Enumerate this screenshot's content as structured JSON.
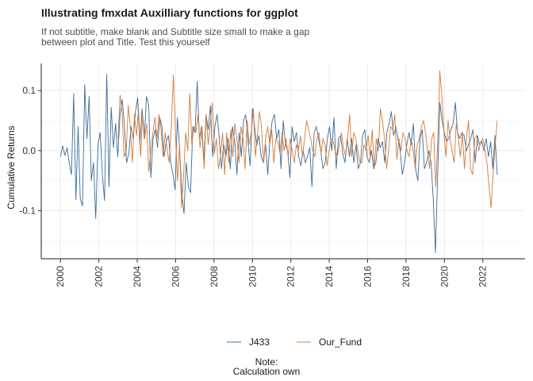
{
  "chart_data": {
    "type": "line",
    "title": "Illustrating fmxdat Auxilliary functions for ggplot",
    "subtitle_lines": [
      "If not subtitle, make blank and Subtitle size small to make a gap",
      "between plot and Title. Test this yourself"
    ],
    "ylabel": "Cumulative Returns",
    "xlabel": "",
    "x_ticks": [
      "2000",
      "2002",
      "2004",
      "2006",
      "2008",
      "2010",
      "2012",
      "2014",
      "2016",
      "2018",
      "2020",
      "2022"
    ],
    "y_ticks": [
      "0.1",
      "0.0",
      "-0.1"
    ],
    "y_tick_values": [
      0.1,
      0.0,
      -0.1
    ],
    "ylim": [
      -0.18,
      0.145
    ],
    "xlim": [
      1999.0,
      2024.2
    ],
    "grid": true,
    "legend_position": "bottom",
    "caption_lines": [
      "Note:",
      "Calculation own"
    ],
    "series": [
      {
        "name": "J433",
        "color": "#3b6b9a",
        "x_start": 2000.0,
        "x_end": 2022.75,
        "values": [
          -0.01,
          0.008,
          -0.008,
          0.005,
          -0.02,
          -0.04,
          0.095,
          -0.082,
          0.04,
          -0.08,
          -0.092,
          0.11,
          0.02,
          0.09,
          -0.05,
          -0.02,
          -0.113,
          0.01,
          0.03,
          -0.04,
          -0.083,
          0.127,
          -0.06,
          0.072,
          0.005,
          0.045,
          -0.01,
          0.06,
          0.085,
          0.04,
          -0.02,
          -0.005,
          0.04,
          0.02,
          0.065,
          0.088,
          0.01,
          0.07,
          0.02,
          0.09,
          0.075,
          -0.045,
          0.02,
          0.035,
          0.005,
          0.055,
          0.04,
          -0.01,
          0.015,
          0.025,
          -0.02,
          -0.04,
          -0.065,
          0.055,
          0.005,
          -0.07,
          -0.105,
          -0.02,
          -0.06,
          -0.07,
          0.04,
          0.03,
          0.115,
          0.02,
          0.04,
          -0.02,
          0.06,
          0.035,
          0.075,
          -0.01,
          0.04,
          0.06,
          0.02,
          -0.03,
          0.01,
          -0.01,
          0.02,
          -0.03,
          0.04,
          0.015,
          -0.04,
          0.03,
          -0.01,
          0.05,
          0.06,
          0.015,
          -0.025,
          0.07,
          0.04,
          0.008,
          0.025,
          -0.01,
          -0.02,
          0.01,
          -0.04,
          0.02,
          0.05,
          0.06,
          0.02,
          0.035,
          -0.03,
          0.05,
          0.01,
          0.0,
          -0.045,
          0.04,
          0.015,
          0.03,
          -0.01,
          -0.025,
          0.0,
          -0.02,
          -0.01,
          0.005,
          -0.06,
          0.03,
          0.04,
          0.02,
          0.0,
          -0.03,
          -0.02,
          0.02,
          0.04,
          0.0,
          0.055,
          -0.03,
          0.02,
          0.025,
          -0.005,
          -0.02,
          0.02,
          -0.01,
          0.02,
          -0.02,
          0.01,
          -0.03,
          -0.02,
          0.025,
          0.035,
          -0.01,
          -0.02,
          0.0,
          -0.03,
          -0.02,
          0.02,
          0.005,
          0.015,
          -0.02,
          0.03,
          0.045,
          0.065,
          0.025,
          0.04,
          0.02,
          0.0,
          -0.04,
          -0.02,
          0.01,
          0.03,
          0.01,
          0.045,
          -0.03,
          -0.05,
          0.02,
          0.035,
          -0.03,
          -0.02,
          0.0,
          -0.02,
          -0.08,
          -0.17,
          -0.04,
          0.08,
          0.05,
          0.03,
          0.015,
          0.02,
          0.035,
          0.045,
          0.08,
          0.03,
          0.02,
          0.03,
          0.025,
          0.0,
          0.01,
          0.02,
          0.035,
          -0.02,
          0.025,
          0.01,
          0.015,
          0.0,
          0.02,
          -0.01,
          0.015,
          -0.03,
          0.025,
          -0.04
        ]
      },
      {
        "name": "Our_Fund",
        "color": "#d47a36",
        "x_start": 2003.0,
        "x_end": 2022.75,
        "values": [
          0.02,
          0.092,
          0.06,
          -0.01,
          0.0,
          0.075,
          0.04,
          -0.02,
          0.06,
          0.025,
          0.07,
          -0.01,
          0.06,
          0.02,
          0.045,
          -0.035,
          0.0,
          0.03,
          0.055,
          0.02,
          0.06,
          0.035,
          -0.01,
          0.03,
          0.0,
          -0.02,
          0.04,
          0.126,
          0.03,
          -0.05,
          0.01,
          -0.095,
          -0.04,
          0.03,
          0.0,
          0.095,
          0.01,
          0.04,
          0.03,
          0.06,
          0.005,
          0.04,
          -0.03,
          0.06,
          0.01,
          0.045,
          0.08,
          -0.005,
          0.02,
          -0.03,
          -0.01,
          0.03,
          -0.04,
          0.03,
          -0.02,
          0.035,
          -0.01,
          0.045,
          0.02,
          -0.02,
          0.04,
          0.02,
          -0.03,
          0.05,
          0.01,
          0.03,
          0.07,
          -0.01,
          0.025,
          0.065,
          0.04,
          -0.02,
          0.02,
          0.04,
          0.01,
          0.035,
          -0.02,
          0.02,
          0.015,
          -0.005,
          0.03,
          0.0,
          0.02,
          -0.01,
          0.02,
          0.0,
          -0.02,
          0.01,
          0.0,
          0.025,
          -0.01,
          0.02,
          0.05,
          0.035,
          0.02,
          0.0,
          -0.01,
          0.02,
          0.03,
          -0.005,
          0.02,
          0.01,
          -0.025,
          0.0,
          0.02,
          0.015,
          0.0,
          -0.01,
          0.01,
          0.03,
          0.005,
          -0.01,
          0.02,
          0.06,
          -0.01,
          0.03,
          0.02,
          0.0,
          -0.02,
          -0.02,
          0.01,
          0.0,
          0.025,
          -0.01,
          0.035,
          -0.03,
          0.02,
          0.0,
          0.07,
          0.05,
          0.02,
          -0.03,
          0.0,
          0.04,
          0.035,
          0.06,
          -0.015,
          0.02,
          0.0,
          0.03,
          0.02,
          0.0,
          -0.01,
          0.02,
          0.0,
          -0.03,
          0.01,
          0.02,
          0.04,
          0.05,
          0.03,
          0.0,
          -0.03,
          0.02,
          0.03,
          -0.06,
          0.02,
          0.133,
          0.09,
          0.03,
          -0.01,
          0.05,
          0.02,
          0.0,
          -0.02,
          0.045,
          0.02,
          -0.01,
          0.03,
          -0.03,
          0.02,
          0.05,
          -0.03,
          -0.04,
          0.02,
          0.025,
          0.0,
          0.015,
          0.02,
          0.0,
          -0.02,
          -0.06,
          -0.095,
          -0.04,
          0.01,
          0.05
        ]
      }
    ]
  }
}
